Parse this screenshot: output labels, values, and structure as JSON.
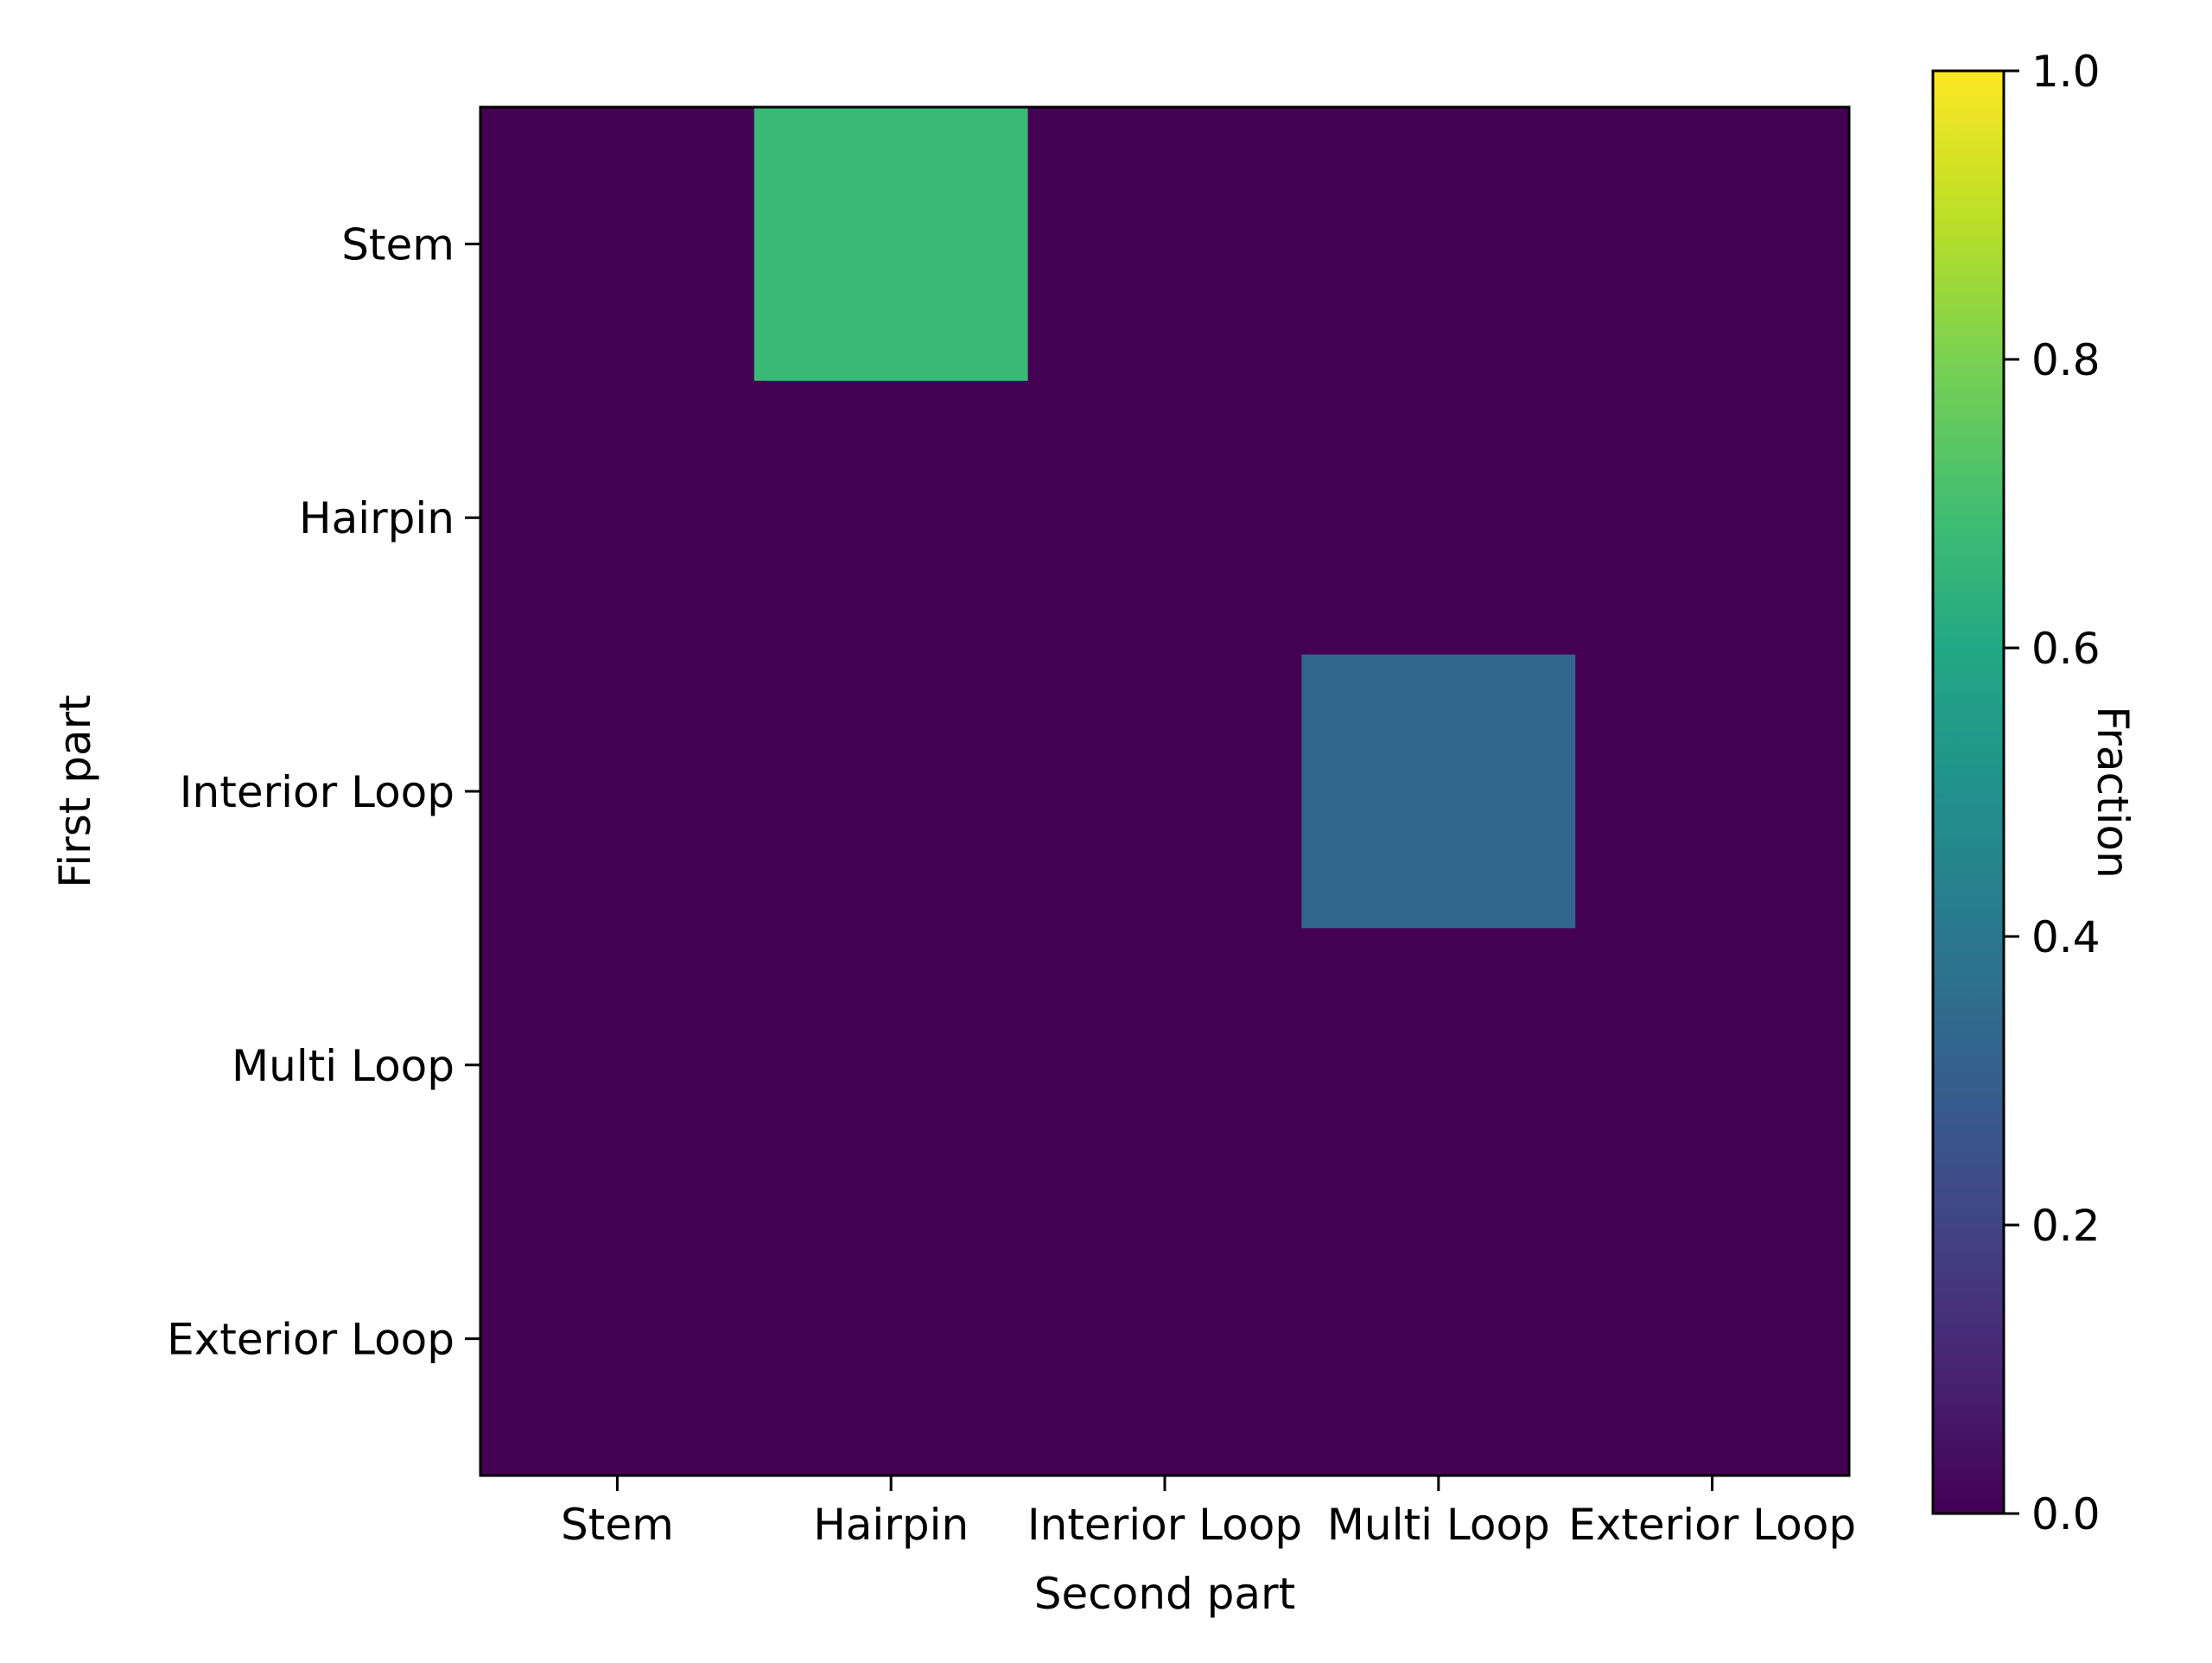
{
  "chart_data": {
    "type": "heatmap",
    "x_categories": [
      "Stem",
      "Hairpin",
      "Interior Loop",
      "Multi Loop",
      "Exterior Loop"
    ],
    "y_categories": [
      "Stem",
      "Hairpin",
      "Interior Loop",
      "Multi Loop",
      "Exterior Loop"
    ],
    "values": [
      [
        0,
        0.67,
        0,
        0,
        0
      ],
      [
        0,
        0,
        0,
        0,
        0
      ],
      [
        0,
        0,
        0,
        0.33,
        0
      ],
      [
        0,
        0,
        0,
        0,
        0
      ],
      [
        0,
        0,
        0,
        0,
        0
      ]
    ],
    "xlabel": "Second part",
    "ylabel": "First part",
    "colorbar": {
      "label": "Fraction",
      "range": [
        0.0,
        1.0
      ],
      "ticks": [
        0.0,
        0.2,
        0.4,
        0.6,
        0.8,
        1.0
      ],
      "tick_labels": [
        "0.0",
        "0.2",
        "0.4",
        "0.6",
        "0.8",
        "1.0"
      ],
      "colormap": "viridis"
    },
    "grid": false
  }
}
